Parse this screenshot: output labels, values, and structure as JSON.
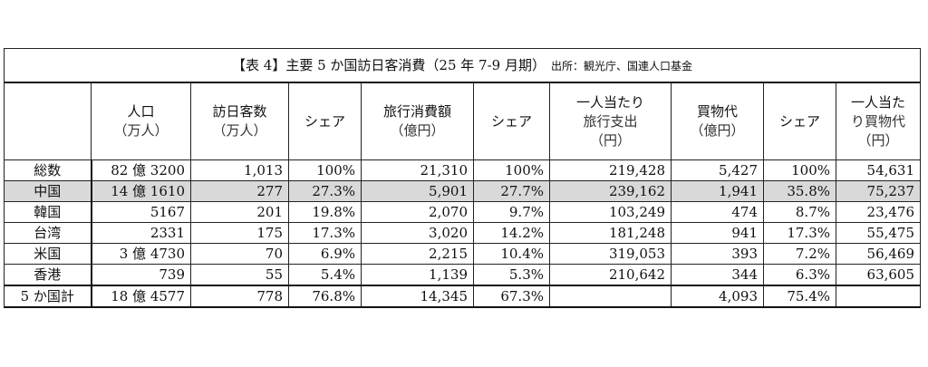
{
  "title": {
    "main": "【表 4】主要 5 か国訪日客消費（25 年 7-9 月期）",
    "source": "出所：観光庁、国連人口基金"
  },
  "headers": [
    {
      "line1": "",
      "line2": "",
      "line3": ""
    },
    {
      "line1": "人口",
      "line2": "（万人）",
      "line3": ""
    },
    {
      "line1": "訪日客数",
      "line2": "（万人）",
      "line3": ""
    },
    {
      "line1": "シェア",
      "line2": "",
      "line3": ""
    },
    {
      "line1": "旅行消費額",
      "line2": "（億円）",
      "line3": ""
    },
    {
      "line1": "シェア",
      "line2": "",
      "line3": ""
    },
    {
      "line1": "一人当たり",
      "line2": "旅行支出",
      "line3": "（円）"
    },
    {
      "line1": "買物代",
      "line2": "（億円）",
      "line3": ""
    },
    {
      "line1": "シェア",
      "line2": "",
      "line3": ""
    },
    {
      "line1": "一人当た",
      "line2": "り買物代",
      "line3": "（円）"
    }
  ],
  "rows": [
    [
      "総数",
      "82 億 3200",
      "1,013",
      "100%",
      "21,310",
      "100%",
      "219,428",
      "5,427",
      "100%",
      "54,631"
    ],
    [
      "中国",
      "14 億 1610",
      "277",
      "27.3%",
      "5,901",
      "27.7%",
      "239,162",
      "1,941",
      "35.8%",
      "75,237"
    ],
    [
      "韓国",
      "5167",
      "201",
      "19.8%",
      "2,070",
      "9.7%",
      "103,249",
      "474",
      "8.7%",
      "23,476"
    ],
    [
      "台湾",
      "2331",
      "175",
      "17.3%",
      "3,020",
      "14.2%",
      "181,248",
      "941",
      "17.3%",
      "55,475"
    ],
    [
      "米国",
      "3 億 4730",
      "70",
      "6.9%",
      "2,215",
      "10.4%",
      "319,053",
      "393",
      "7.2%",
      "56,469"
    ],
    [
      "香港",
      "739",
      "55",
      "5.4%",
      "1,139",
      "5.3%",
      "210,642",
      "344",
      "6.3%",
      "63,605"
    ],
    [
      "5 か国計",
      "18 億 4577",
      "778",
      "76.8%",
      "14,345",
      "67.3%",
      "",
      "4,093",
      "75.4%",
      ""
    ]
  ]
}
